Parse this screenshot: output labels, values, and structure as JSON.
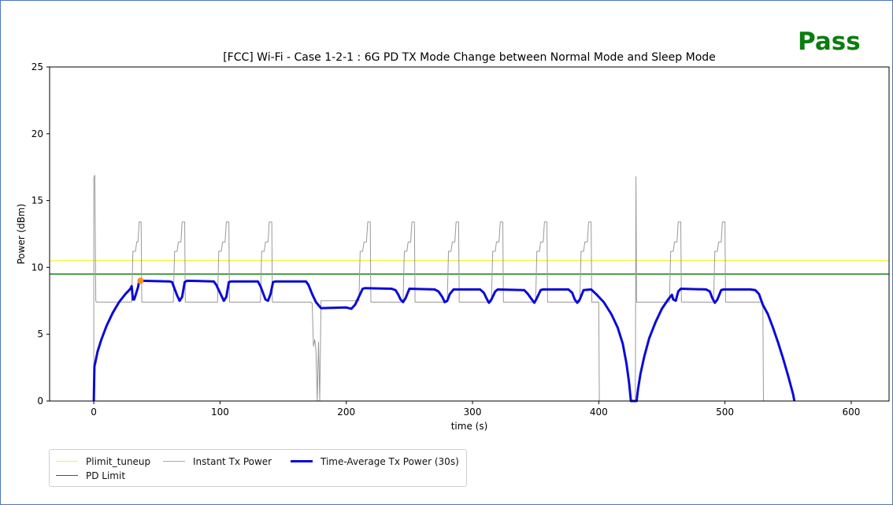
{
  "status": {
    "label": "Pass",
    "color": "#0b7d10"
  },
  "chart_data": {
    "type": "line",
    "title": "[FCC] Wi-Fi - Case 1-2-1 : 6G PD TX Mode Change between Normal Mode and Sleep Mode",
    "xlabel": "time (s)",
    "ylabel": "Power (dBm)",
    "xlim": [
      -35,
      630
    ],
    "ylim": [
      0,
      25
    ],
    "xticks": [
      0,
      100,
      200,
      300,
      400,
      500,
      600
    ],
    "yticks": [
      0,
      5,
      10,
      15,
      20,
      25
    ],
    "grid": false,
    "legend_position": "below-left",
    "series": [
      {
        "name": "Plimit_tuneup",
        "kind": "hline",
        "value": 10.5,
        "color": "#f5f542"
      },
      {
        "name": "PD Limit",
        "kind": "hline",
        "value": 9.5,
        "color": "#108010"
      },
      {
        "name": "Instant Tx Power",
        "kind": "line",
        "color": "#999999",
        "points": [
          [
            0,
            0
          ],
          [
            0,
            16.7
          ],
          [
            0.8,
            16.9
          ],
          [
            1.6,
            7.5
          ],
          [
            2,
            7.4
          ],
          [
            29,
            7.4
          ],
          [
            30,
            7.4
          ],
          [
            31,
            11.2
          ],
          [
            33,
            11.2
          ],
          [
            34,
            11.9
          ],
          [
            35,
            11.9
          ],
          [
            36,
            13.4
          ],
          [
            37.5,
            13.4
          ],
          [
            38,
            7.4
          ],
          [
            63,
            7.4
          ],
          [
            64,
            11.2
          ],
          [
            66,
            11.2
          ],
          [
            67,
            11.9
          ],
          [
            69,
            11.9
          ],
          [
            70,
            13.4
          ],
          [
            72,
            13.4
          ],
          [
            72.5,
            7.4
          ],
          [
            98,
            7.4
          ],
          [
            99,
            11.2
          ],
          [
            101,
            11.2
          ],
          [
            102,
            11.9
          ],
          [
            104,
            11.9
          ],
          [
            105,
            13.4
          ],
          [
            107,
            13.4
          ],
          [
            107.5,
            7.4
          ],
          [
            132,
            7.4
          ],
          [
            133,
            11.2
          ],
          [
            135,
            11.2
          ],
          [
            136,
            11.9
          ],
          [
            138,
            11.9
          ],
          [
            139,
            13.4
          ],
          [
            141,
            13.4
          ],
          [
            141.5,
            7.4
          ],
          [
            172,
            7.4
          ],
          [
            173,
            7.3
          ],
          [
            174,
            4.1
          ],
          [
            175,
            4.6
          ],
          [
            176,
            3.8
          ],
          [
            177,
            0
          ],
          [
            178,
            4.4
          ],
          [
            179,
            0
          ],
          [
            180,
            7.5
          ],
          [
            210,
            7.5
          ],
          [
            211,
            11.2
          ],
          [
            213,
            11.2
          ],
          [
            214,
            11.9
          ],
          [
            216,
            11.9
          ],
          [
            217,
            13.4
          ],
          [
            219,
            13.4
          ],
          [
            219.5,
            7.4
          ],
          [
            245,
            7.4
          ],
          [
            246,
            11.2
          ],
          [
            248,
            11.2
          ],
          [
            249,
            11.9
          ],
          [
            251,
            11.9
          ],
          [
            252,
            13.4
          ],
          [
            254,
            13.4
          ],
          [
            254.5,
            7.4
          ],
          [
            280,
            7.4
          ],
          [
            281,
            11.2
          ],
          [
            283,
            11.2
          ],
          [
            284,
            11.9
          ],
          [
            286,
            11.9
          ],
          [
            287,
            13.4
          ],
          [
            289,
            13.4
          ],
          [
            289.5,
            7.4
          ],
          [
            315,
            7.4
          ],
          [
            316,
            11.2
          ],
          [
            318,
            11.2
          ],
          [
            319,
            11.9
          ],
          [
            321,
            11.9
          ],
          [
            322,
            13.4
          ],
          [
            324,
            13.4
          ],
          [
            324.5,
            7.4
          ],
          [
            350,
            7.4
          ],
          [
            351,
            11.2
          ],
          [
            353,
            11.2
          ],
          [
            354,
            11.9
          ],
          [
            356,
            11.9
          ],
          [
            357,
            13.4
          ],
          [
            359,
            13.4
          ],
          [
            359.5,
            7.4
          ],
          [
            385,
            7.4
          ],
          [
            386,
            11.2
          ],
          [
            388,
            11.2
          ],
          [
            389,
            11.9
          ],
          [
            391,
            11.9
          ],
          [
            392,
            13.4
          ],
          [
            394,
            13.4
          ],
          [
            394.5,
            7.4
          ],
          [
            400,
            7.4
          ],
          [
            400.5,
            0
          ],
          [
            429,
            0
          ],
          [
            429.5,
            16.8
          ],
          [
            430,
            7.4
          ],
          [
            456,
            7.4
          ],
          [
            457,
            11.2
          ],
          [
            459,
            11.2
          ],
          [
            460,
            11.9
          ],
          [
            462,
            11.9
          ],
          [
            463,
            13.4
          ],
          [
            465,
            13.4
          ],
          [
            465.5,
            7.4
          ],
          [
            491,
            7.4
          ],
          [
            492,
            11.2
          ],
          [
            494,
            11.2
          ],
          [
            495,
            11.9
          ],
          [
            497,
            11.9
          ],
          [
            498,
            13.4
          ],
          [
            500,
            13.4
          ],
          [
            500.5,
            7.4
          ],
          [
            530,
            7.4
          ],
          [
            530.5,
            0
          ]
        ]
      },
      {
        "name": "Time-Average Tx Power (30s)",
        "kind": "line",
        "color": "#0a0ad8",
        "points": [
          [
            0,
            0
          ],
          [
            0.5,
            2.6
          ],
          [
            1,
            2.8
          ],
          [
            3,
            3.7
          ],
          [
            6,
            4.6
          ],
          [
            10,
            5.6
          ],
          [
            15,
            6.6
          ],
          [
            20,
            7.4
          ],
          [
            25,
            8.0
          ],
          [
            29,
            8.4
          ],
          [
            30,
            8.6
          ],
          [
            31,
            7.6
          ],
          [
            32,
            7.6
          ],
          [
            33,
            7.9
          ],
          [
            35,
            8.5
          ],
          [
            36,
            9.0
          ],
          [
            38,
            9.0
          ],
          [
            60,
            8.95
          ],
          [
            62,
            8.9
          ],
          [
            64,
            8.4
          ],
          [
            66,
            7.9
          ],
          [
            68,
            7.5
          ],
          [
            70,
            7.8
          ],
          [
            72,
            8.9
          ],
          [
            74,
            9.0
          ],
          [
            95,
            8.95
          ],
          [
            97,
            8.7
          ],
          [
            99,
            8.3
          ],
          [
            101,
            7.9
          ],
          [
            103,
            7.5
          ],
          [
            105,
            7.8
          ],
          [
            107,
            8.9
          ],
          [
            109,
            8.95
          ],
          [
            130,
            8.95
          ],
          [
            132,
            8.6
          ],
          [
            134,
            8.1
          ],
          [
            136,
            7.6
          ],
          [
            138,
            7.5
          ],
          [
            140,
            8.0
          ],
          [
            142,
            8.9
          ],
          [
            144,
            8.95
          ],
          [
            168,
            8.95
          ],
          [
            170,
            8.7
          ],
          [
            173,
            8.0
          ],
          [
            176,
            7.4
          ],
          [
            180,
            6.95
          ],
          [
            200,
            7.0
          ],
          [
            204,
            6.9
          ],
          [
            207,
            7.2
          ],
          [
            210,
            7.8
          ],
          [
            213,
            8.4
          ],
          [
            215,
            8.45
          ],
          [
            236,
            8.4
          ],
          [
            239,
            8.3
          ],
          [
            241,
            8.0
          ],
          [
            243,
            7.6
          ],
          [
            245,
            7.4
          ],
          [
            247,
            7.7
          ],
          [
            250,
            8.4
          ],
          [
            270,
            8.35
          ],
          [
            273,
            8.2
          ],
          [
            276,
            7.8
          ],
          [
            278,
            7.4
          ],
          [
            280,
            7.5
          ],
          [
            282,
            8.0
          ],
          [
            285,
            8.35
          ],
          [
            306,
            8.35
          ],
          [
            309,
            8.1
          ],
          [
            311,
            7.7
          ],
          [
            313,
            7.35
          ],
          [
            315,
            7.6
          ],
          [
            318,
            8.2
          ],
          [
            320,
            8.35
          ],
          [
            341,
            8.3
          ],
          [
            344,
            8.0
          ],
          [
            347,
            7.6
          ],
          [
            349,
            7.35
          ],
          [
            351,
            7.7
          ],
          [
            354,
            8.3
          ],
          [
            356,
            8.35
          ],
          [
            376,
            8.35
          ],
          [
            379,
            8.1
          ],
          [
            381,
            7.6
          ],
          [
            383,
            7.35
          ],
          [
            385,
            7.6
          ],
          [
            388,
            8.3
          ],
          [
            394,
            8.35
          ],
          [
            398,
            8.0
          ],
          [
            404,
            7.4
          ],
          [
            410,
            6.5
          ],
          [
            415,
            5.5
          ],
          [
            419,
            4.3
          ],
          [
            422,
            2.8
          ],
          [
            424,
            1.4
          ],
          [
            425.5,
            0
          ],
          [
            430,
            0
          ],
          [
            431,
            0.8
          ],
          [
            433,
            2.0
          ],
          [
            436,
            3.3
          ],
          [
            440,
            4.7
          ],
          [
            445,
            5.9
          ],
          [
            450,
            6.9
          ],
          [
            455,
            7.6
          ],
          [
            458,
            7.95
          ],
          [
            459,
            7.6
          ],
          [
            461,
            7.5
          ],
          [
            463,
            8.2
          ],
          [
            465,
            8.4
          ],
          [
            485,
            8.35
          ],
          [
            488,
            8.2
          ],
          [
            490,
            7.7
          ],
          [
            492,
            7.35
          ],
          [
            494,
            7.6
          ],
          [
            497,
            8.3
          ],
          [
            499,
            8.35
          ],
          [
            520,
            8.35
          ],
          [
            524,
            8.3
          ],
          [
            527,
            8.0
          ],
          [
            530,
            7.2
          ],
          [
            534,
            6.5
          ],
          [
            538,
            5.5
          ],
          [
            542,
            4.4
          ],
          [
            546,
            3.2
          ],
          [
            550,
            1.9
          ],
          [
            554,
            0.5
          ],
          [
            555,
            0
          ]
        ]
      }
    ],
    "highlight_point": {
      "x": 37,
      "y": 9.0,
      "color": "#ff8c1a"
    }
  }
}
